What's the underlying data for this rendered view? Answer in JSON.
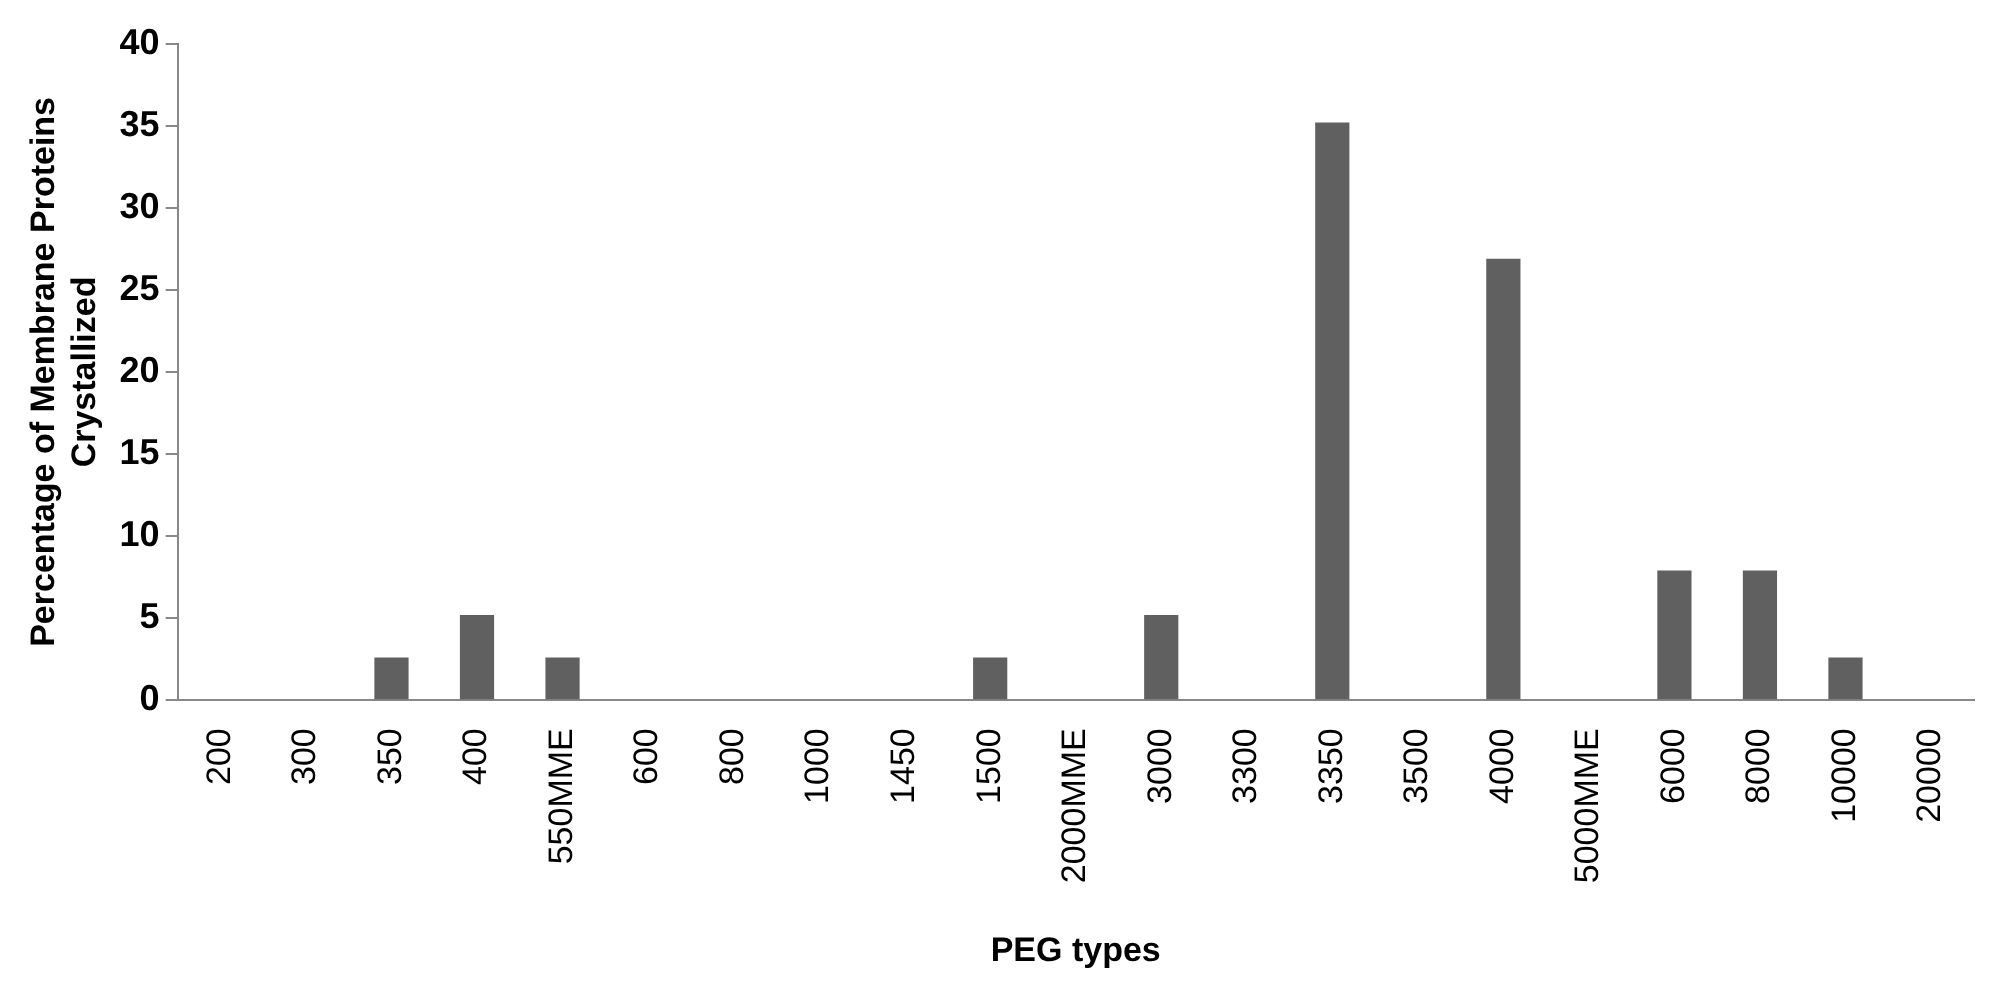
{
  "chart_data": {
    "type": "bar",
    "xlabel": "PEG types",
    "ylabel": "Percentage of Membrane Proteins Crystallized",
    "categories": [
      "200",
      "300",
      "350",
      "400",
      "550MME",
      "600",
      "800",
      "1000",
      "1450",
      "1500",
      "2000MME",
      "3000",
      "3300",
      "3350",
      "3500",
      "4000",
      "5000MME",
      "6000",
      "8000",
      "10000",
      "20000"
    ],
    "values": [
      0,
      0,
      2.6,
      5.2,
      2.6,
      0,
      0,
      0,
      0,
      2.6,
      0,
      5.2,
      0,
      35.2,
      0,
      26.9,
      0,
      7.9,
      7.9,
      2.6,
      0
    ],
    "color": "#606060",
    "ylim": [
      0,
      40
    ],
    "yticks": [
      0,
      5,
      10,
      15,
      20,
      25,
      30,
      35,
      40
    ],
    "grid": false,
    "legend": false
  }
}
